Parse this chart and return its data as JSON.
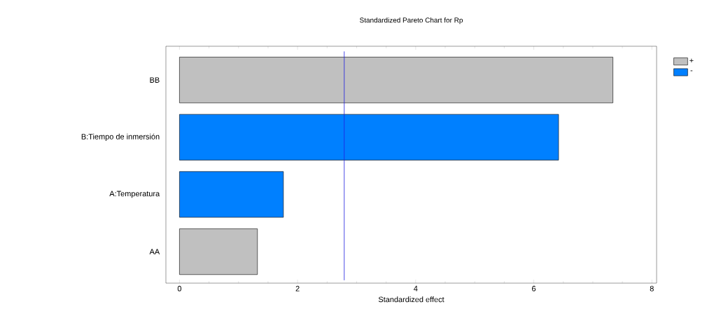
{
  "chart_data": {
    "type": "bar",
    "orientation": "horizontal",
    "title": "Standardized Pareto Chart for Rp",
    "xlabel": "Standardized effect",
    "categories": [
      "BB",
      "B:Tiempo de inmersión",
      "A:Temperatura",
      "AA"
    ],
    "series": [
      {
        "name": "+",
        "color": "#c0c0c0",
        "values": [
          7.34,
          null,
          null,
          1.32
        ]
      },
      {
        "name": "-",
        "color": "#0080ff",
        "values": [
          null,
          6.42,
          1.76,
          null
        ]
      }
    ],
    "xlim": [
      -0.23,
      8.08
    ],
    "xticks": [
      0,
      2,
      4,
      6,
      8
    ],
    "ref_lines": [
      {
        "axis": "x",
        "value": 2.79,
        "color": "#2020e0"
      }
    ],
    "legend": "top right"
  }
}
